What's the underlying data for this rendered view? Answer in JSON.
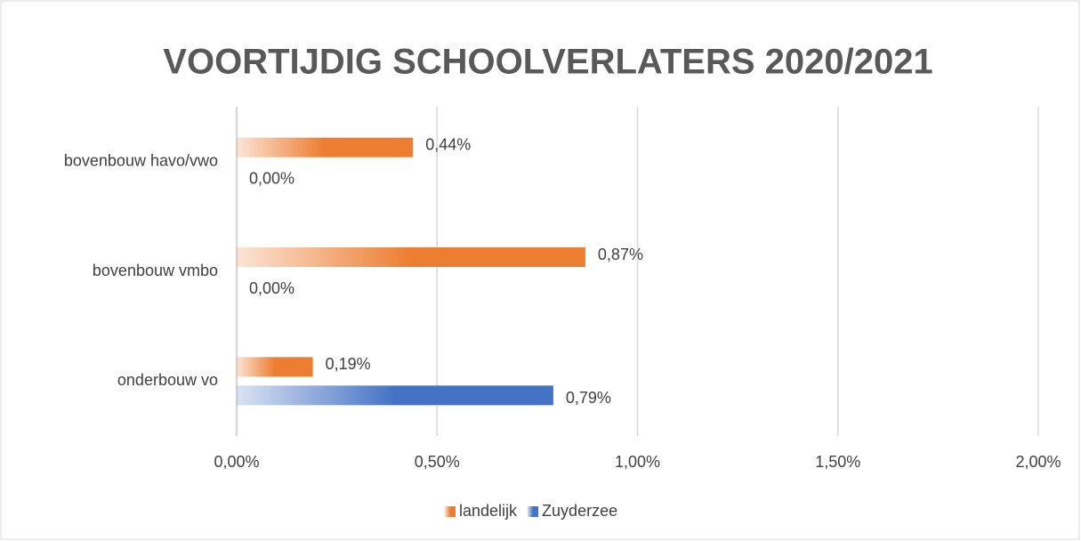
{
  "chart_data": {
    "type": "bar",
    "orientation": "horizontal",
    "title": "VOORTIJDIG SCHOOLVERLATERS 2020/2021",
    "categories": [
      "bovenbouw havo/vwo",
      "bovenbouw vmbo",
      "onderbouw vo"
    ],
    "series": [
      {
        "name": "landelijk",
        "color": "#ed7d31",
        "values": [
          0.44,
          0.87,
          0.19
        ],
        "value_labels": [
          "0,44%",
          "0,87%",
          "0,19%"
        ]
      },
      {
        "name": "Zuyderzee",
        "color": "#4472c4",
        "values": [
          0,
          0,
          0.79
        ],
        "value_labels": [
          "0,00%",
          "0,00%",
          "0,79%"
        ]
      }
    ],
    "xlim": [
      0,
      2
    ],
    "xticks": [
      {
        "value": 0,
        "label": "0,00%"
      },
      {
        "value": 0.5,
        "label": "0,50%"
      },
      {
        "value": 1,
        "label": "1,00%"
      },
      {
        "value": 1.5,
        "label": "1,50%"
      },
      {
        "value": 2,
        "label": "2,00%"
      }
    ],
    "grid": true,
    "legend": "bottom"
  }
}
